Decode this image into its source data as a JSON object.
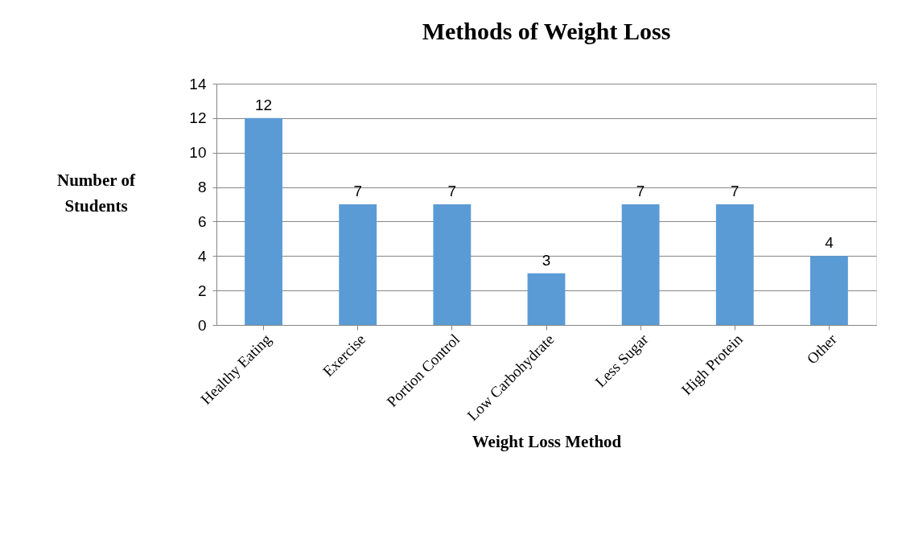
{
  "chart_data": {
    "type": "bar",
    "title": "Methods of Weight Loss",
    "xlabel": "Weight Loss Method",
    "ylabel": "Number of Students",
    "categories": [
      "Healthy Eating",
      "Exercise",
      "Portion Control",
      "Low Carbohydrate",
      "Less Sugar",
      "High Protein",
      "Other"
    ],
    "values": [
      12,
      7,
      7,
      3,
      7,
      7,
      4
    ],
    "color": "#5b9bd5",
    "ylim": [
      0,
      14
    ],
    "yticks": [
      0,
      2,
      4,
      6,
      8,
      10,
      12,
      14
    ],
    "grid": "y",
    "data_labels": true
  }
}
